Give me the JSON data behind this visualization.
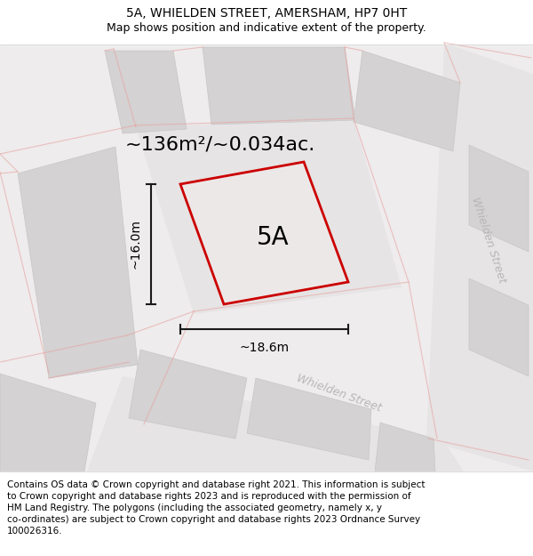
{
  "title_line1": "5A, WHIELDEN STREET, AMERSHAM, HP7 0HT",
  "title_line2": "Map shows position and indicative extent of the property.",
  "footer_lines": [
    "Contains OS data © Crown copyright and database right 2021. This information is subject",
    "to Crown copyright and database rights 2023 and is reproduced with the permission of",
    "HM Land Registry. The polygons (including the associated geometry, namely x, y",
    "co-ordinates) are subject to Crown copyright and database rights 2023 Ordnance Survey",
    "100026316."
  ],
  "area_label": "~136m²/~0.034ac.",
  "width_label": "~18.6m",
  "height_label": "~16.0m",
  "plot_label": "5A",
  "street_label_bottom": "Whielden Street",
  "street_label_right": "Whielden Street",
  "plot_edge_color": "#cc0000",
  "plot_fill_color": "#ede8e8",
  "block_fill_color": "#d4d2d2",
  "block_edge_color": "#c8c6c6",
  "road_fill_color": "#e6e4e4",
  "road_line_color": "#e8a0a0",
  "map_bg_color": "#eeecec",
  "street_label_color": "#b8b6b6",
  "dim_line_color": "#1a1a1a",
  "title_fontsize": 10,
  "subtitle_fontsize": 9,
  "footer_fontsize": 7.5,
  "area_fontsize": 16,
  "dim_fontsize": 10,
  "plot_label_fontsize": 20,
  "street_label_fontsize": 9
}
